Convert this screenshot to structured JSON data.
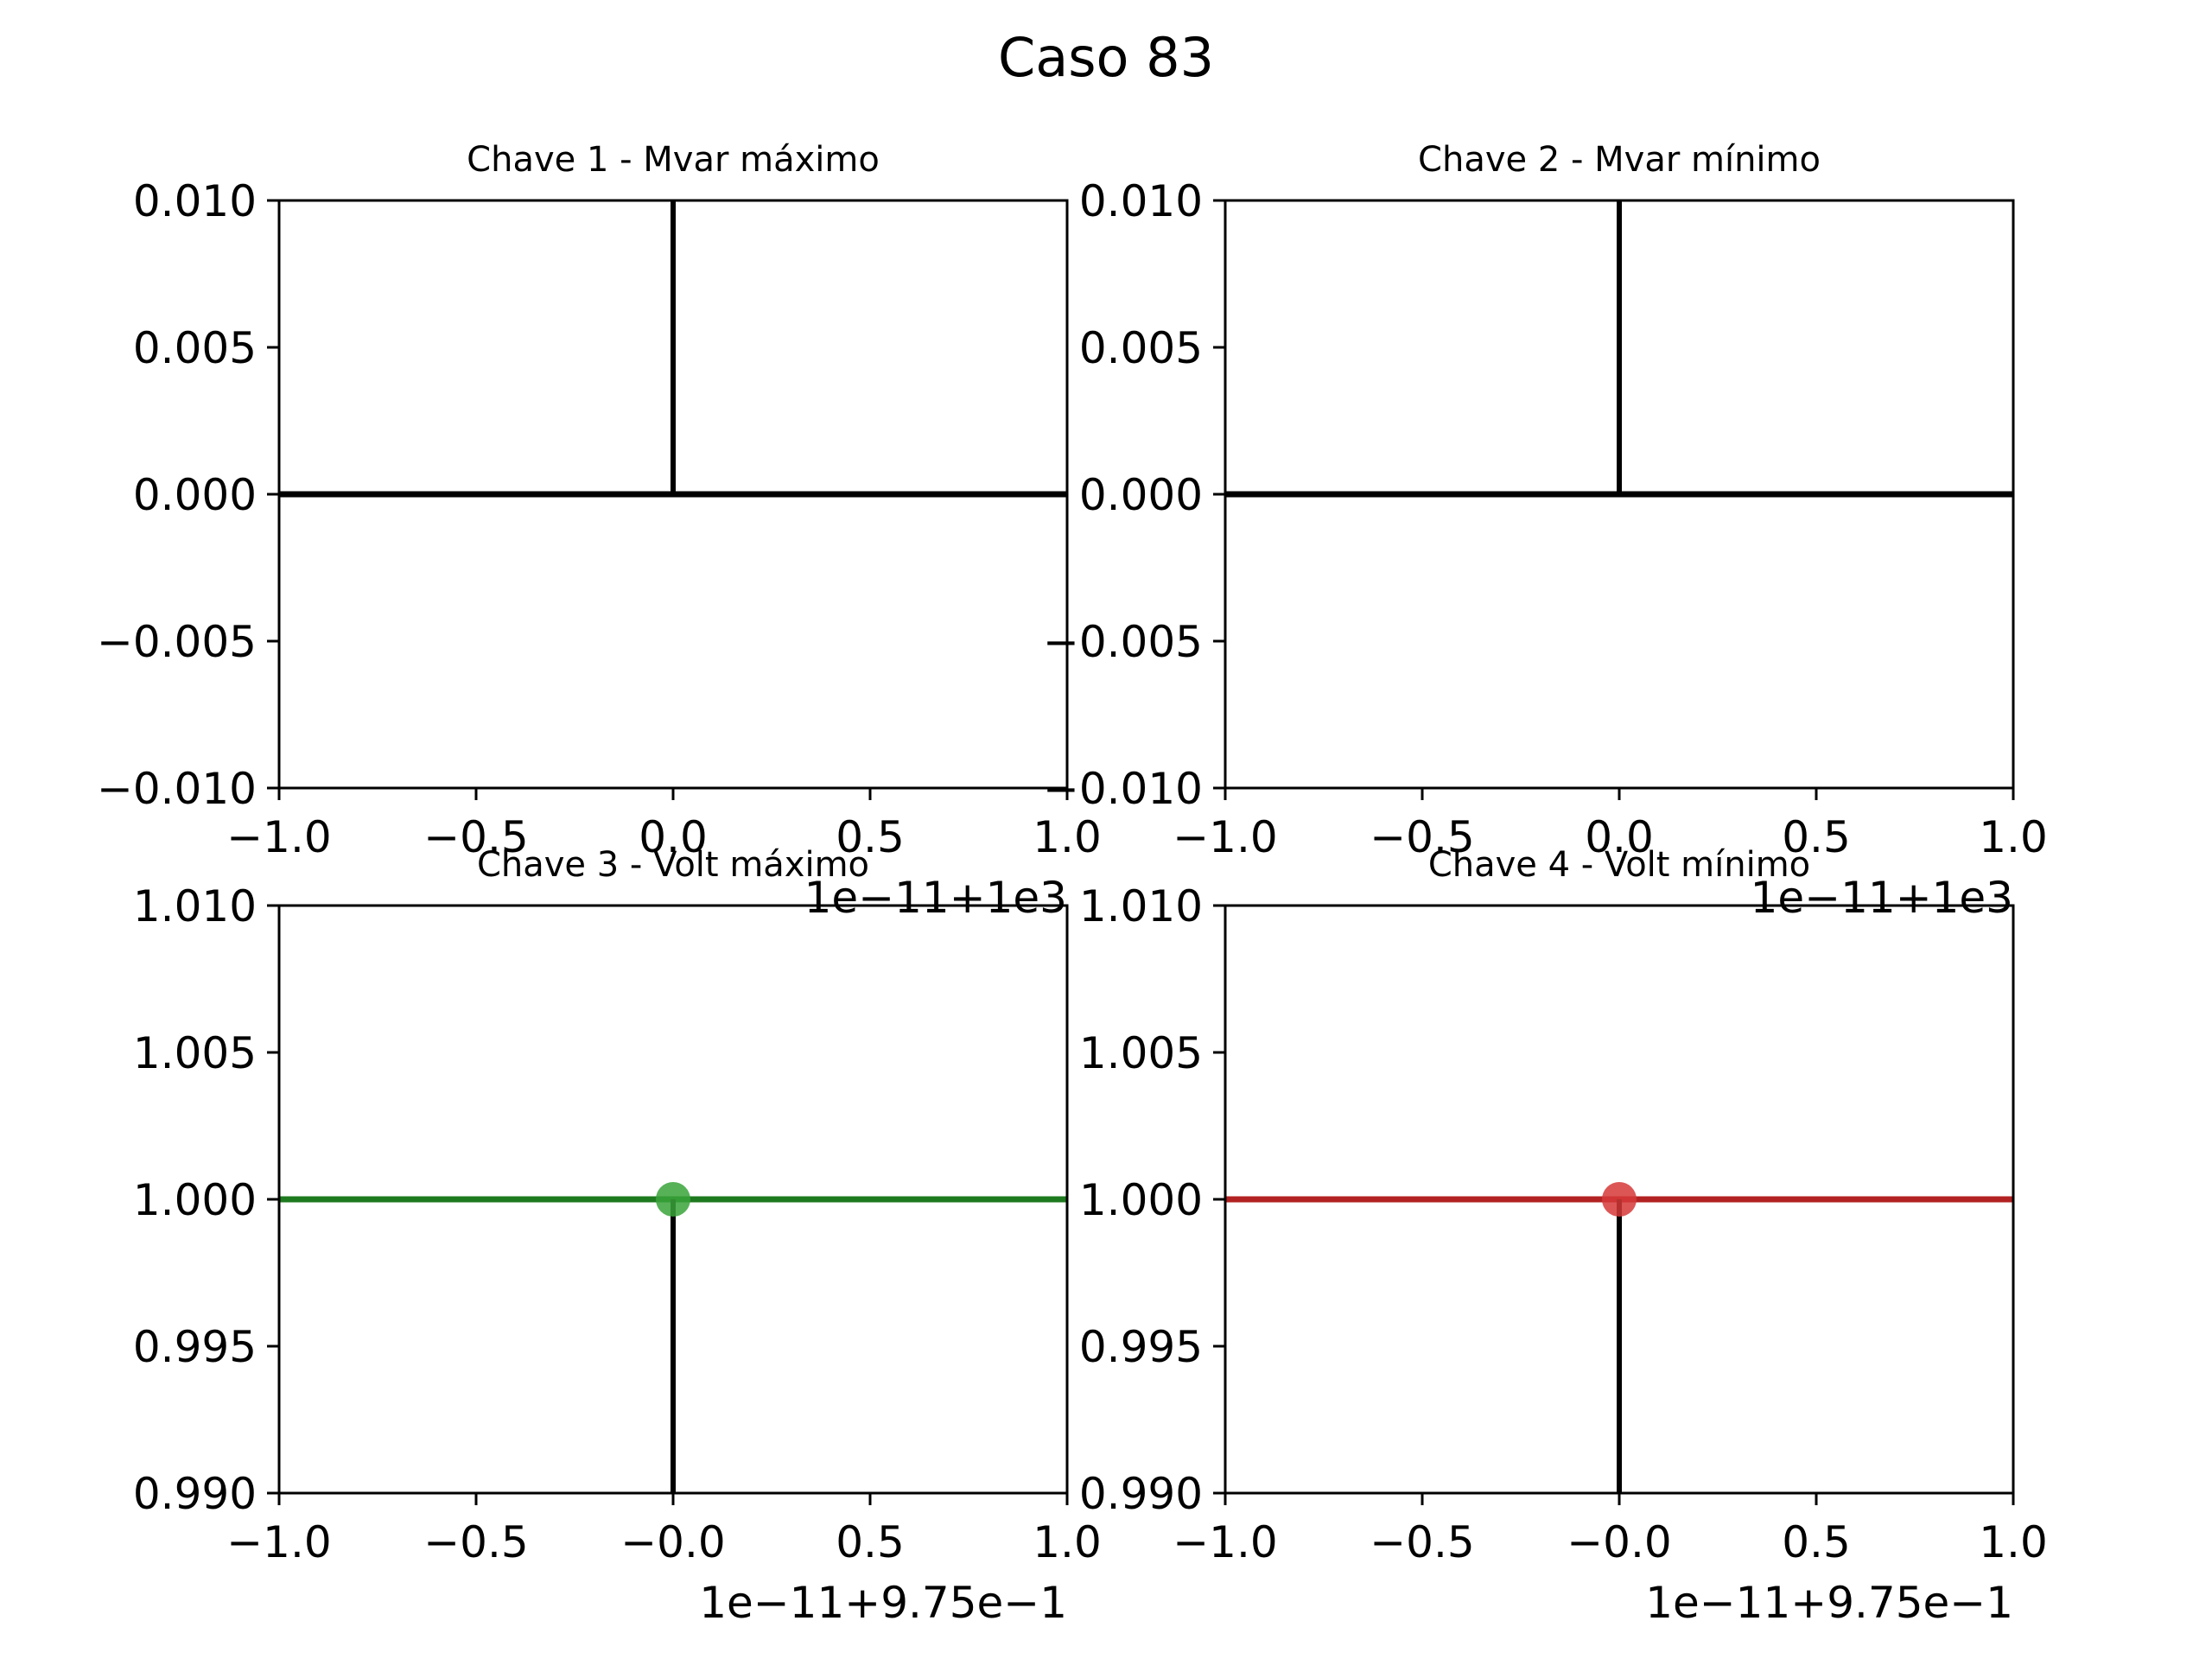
{
  "suptitle": "Caso 83",
  "chart_data": [
    {
      "type": "line",
      "title": "Chave 1 - Mvar máximo",
      "xlim": [
        -1.0,
        1.0
      ],
      "ylim": [
        -0.01,
        0.01
      ],
      "xticks": [
        "−1.0",
        "−0.5",
        "0.0",
        "0.5",
        "1.0"
      ],
      "yticks": [
        "−0.010",
        "−0.005",
        "0.000",
        "0.005",
        "0.010"
      ],
      "x_offset_text": "1e−11+1e3",
      "series": [
        {
          "x": [
            -1.0,
            1.0
          ],
          "y": [
            0.0,
            0.0
          ],
          "color": "#000000"
        }
      ],
      "vline": {
        "x": 0.0,
        "y": [
          0.0,
          0.01
        ],
        "color": "#000000"
      }
    },
    {
      "type": "line",
      "title": "Chave 2 - Mvar mínimo",
      "xlim": [
        -1.0,
        1.0
      ],
      "ylim": [
        -0.01,
        0.01
      ],
      "xticks": [
        "−1.0",
        "−0.5",
        "0.0",
        "0.5",
        "1.0"
      ],
      "yticks": [
        "−0.010",
        "−0.005",
        "0.000",
        "0.005",
        "0.010"
      ],
      "x_offset_text": "1e−11+1e3",
      "series": [
        {
          "x": [
            -1.0,
            1.0
          ],
          "y": [
            0.0,
            0.0
          ],
          "color": "#000000"
        }
      ],
      "vline": {
        "x": 0.0,
        "y": [
          0.0,
          0.01
        ],
        "color": "#000000"
      }
    },
    {
      "type": "line",
      "title": "Chave 3 - Volt máximo",
      "xlim": [
        -1.0,
        1.0
      ],
      "ylim": [
        0.99,
        1.01
      ],
      "xticks": [
        "−1.0",
        "−0.5",
        "−0.0",
        "0.5",
        "1.0"
      ],
      "yticks": [
        "0.990",
        "0.995",
        "1.000",
        "1.005",
        "1.010"
      ],
      "x_offset_text": "1e−11+9.75e−1",
      "series": [
        {
          "x": [
            -1.0,
            1.0
          ],
          "y": [
            1.0,
            1.0
          ],
          "color": "#1e7a1e"
        }
      ],
      "point": {
        "x": 0.0,
        "y": 1.0,
        "color": "#3aa33a"
      },
      "vline": {
        "x": 0.0,
        "y": [
          0.99,
          1.0
        ],
        "color": "#000000"
      }
    },
    {
      "type": "line",
      "title": "Chave 4 - Volt mínimo",
      "xlim": [
        -1.0,
        1.0
      ],
      "ylim": [
        0.99,
        1.01
      ],
      "xticks": [
        "−1.0",
        "−0.5",
        "−0.0",
        "0.5",
        "1.0"
      ],
      "yticks": [
        "0.990",
        "0.995",
        "1.000",
        "1.005",
        "1.010"
      ],
      "x_offset_text": "1e−11+9.75e−1",
      "series": [
        {
          "x": [
            -1.0,
            1.0
          ],
          "y": [
            1.0,
            1.0
          ],
          "color": "#b22222"
        }
      ],
      "point": {
        "x": 0.0,
        "y": 1.0,
        "color": "#d63838"
      },
      "vline": {
        "x": 0.0,
        "y": [
          0.99,
          1.0
        ],
        "color": "#000000"
      }
    }
  ]
}
